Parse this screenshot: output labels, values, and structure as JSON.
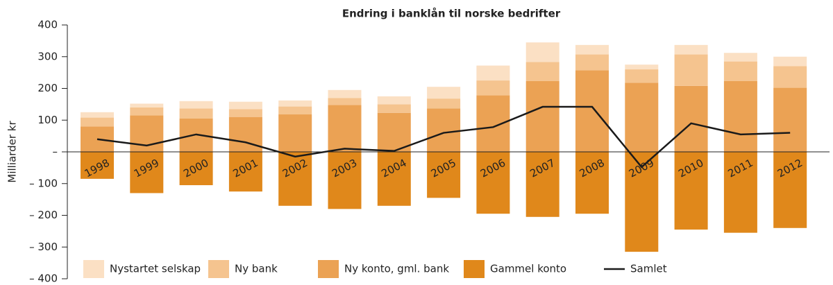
{
  "chart_data": {
    "type": "bar",
    "title": "Endring i banklån til norske bedrifter",
    "y_label": "Milliarder kr",
    "categories": [
      "1998",
      "1999",
      "2000",
      "2001",
      "2002",
      "2003",
      "2004",
      "2005",
      "2006",
      "2007",
      "2008",
      "2009",
      "2010",
      "2011",
      "2012"
    ],
    "series": [
      {
        "name": "Nystartet selskap",
        "color": "#fbe0c4",
        "values": [
          17,
          12,
          23,
          23,
          19,
          25,
          25,
          37,
          47,
          62,
          30,
          15,
          30,
          27,
          30
        ]
      },
      {
        "name": "Ny bank",
        "color": "#f5c48f",
        "values": [
          28,
          25,
          32,
          25,
          25,
          22,
          27,
          31,
          47,
          60,
          50,
          42,
          99,
          62,
          68
        ]
      },
      {
        "name": "Ny konto, gml. bank",
        "color": "#eba254",
        "values": [
          80,
          115,
          105,
          110,
          118,
          148,
          123,
          137,
          178,
          223,
          257,
          218,
          208,
          223,
          202
        ]
      },
      {
        "name": "Gammel konto",
        "color": "#e0881b",
        "values": [
          -85,
          -130,
          -105,
          -125,
          -170,
          -180,
          -170,
          -145,
          -195,
          -205,
          -195,
          -315,
          -245,
          -255,
          -240
        ]
      },
      {
        "name": "Samlet",
        "color": "#1a1a1a",
        "type": "line",
        "values": [
          40,
          20,
          55,
          30,
          -15,
          10,
          3,
          60,
          78,
          142,
          142,
          -48,
          90,
          55,
          60
        ]
      }
    ],
    "stacked": true,
    "ylim": [
      -400,
      400
    ],
    "yticks": [
      400,
      300,
      200,
      100,
      {
        "value": 0,
        "label": "–"
      },
      {
        "value": -100,
        "label": "– 100"
      },
      {
        "value": -200,
        "label": "– 200"
      },
      {
        "value": -300,
        "label": "– 300"
      },
      {
        "value": -400,
        "label": "– 400"
      }
    ]
  }
}
